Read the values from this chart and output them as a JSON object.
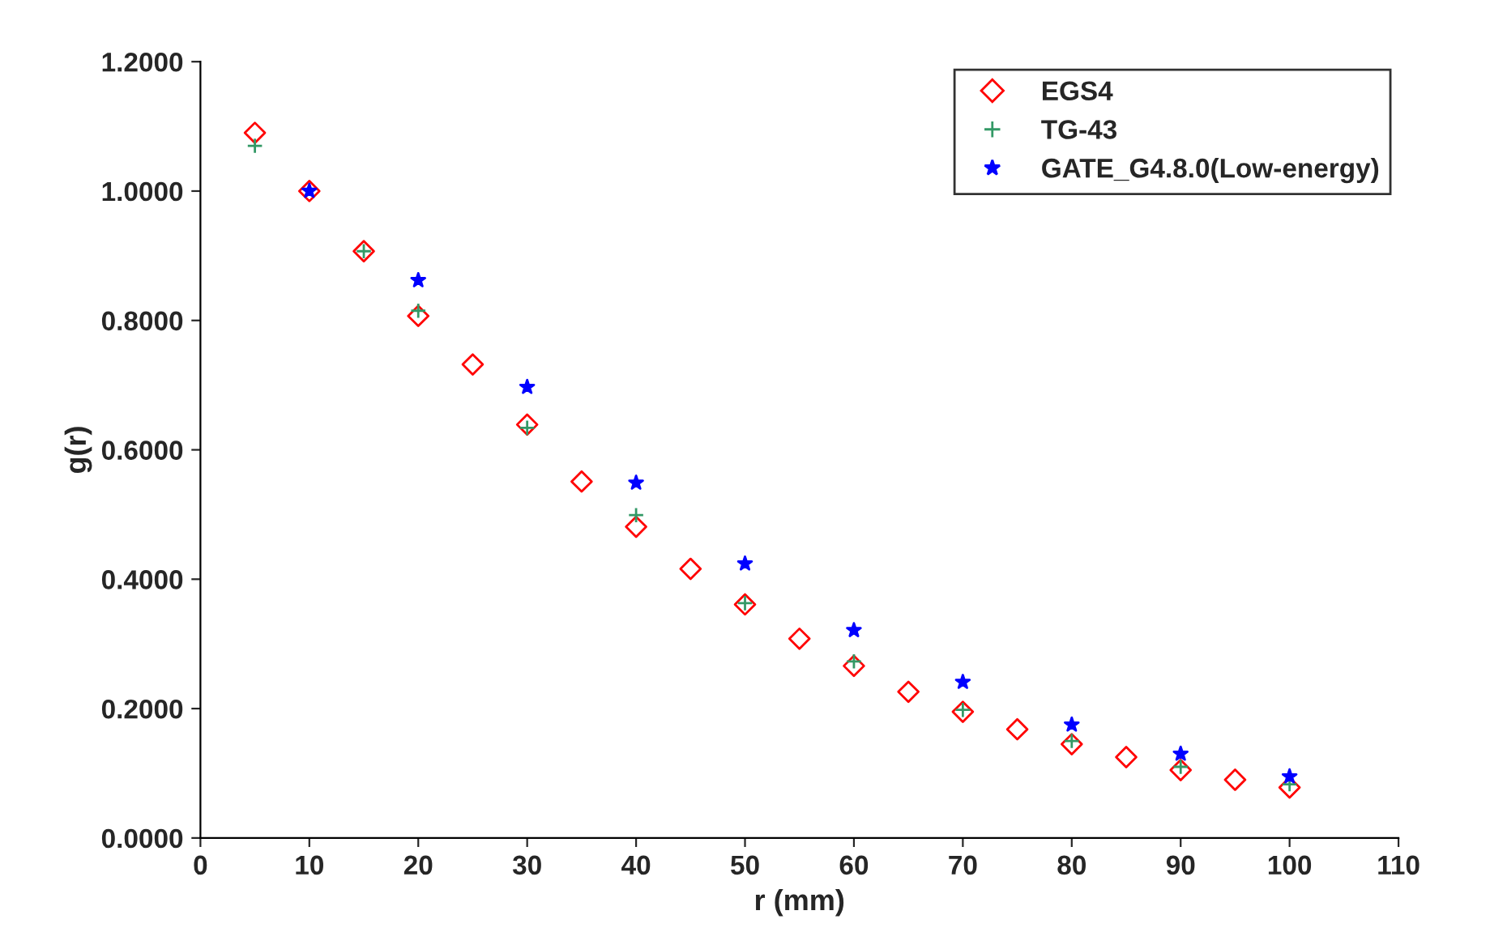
{
  "chart_data": {
    "type": "scatter",
    "xlabel": "r (mm)",
    "ylabel": "g(r)",
    "xlim": [
      0,
      110
    ],
    "xticks": [
      0,
      10,
      20,
      30,
      40,
      50,
      60,
      70,
      80,
      90,
      100,
      110
    ],
    "ylim": [
      0,
      1.2
    ],
    "yticks": [
      {
        "value": 0,
        "label": "0.0000"
      },
      {
        "value": 0.2,
        "label": "0.2000"
      },
      {
        "value": 0.4,
        "label": "0.4000"
      },
      {
        "value": 0.6,
        "label": "0.6000"
      },
      {
        "value": 0.8,
        "label": "0.8000"
      },
      {
        "value": 1.0,
        "label": "1.0000"
      },
      {
        "value": 1.2,
        "label": "1.2000"
      }
    ],
    "grid": false,
    "legend": "top right",
    "series": [
      {
        "name": "EGS4",
        "color": "#ff0000",
        "marker": "diamond",
        "x": [
          5,
          10,
          15,
          20,
          25,
          30,
          35,
          40,
          45,
          50,
          55,
          60,
          65,
          70,
          75,
          80,
          85,
          90,
          95,
          100
        ],
        "values": [
          1.09,
          1.0,
          0.907,
          0.807,
          0.732,
          0.639,
          0.551,
          0.481,
          0.416,
          0.361,
          0.308,
          0.266,
          0.226,
          0.195,
          0.168,
          0.145,
          0.125,
          0.105,
          0.09,
          0.078
        ]
      },
      {
        "name": "TG-43",
        "color": "#339966",
        "marker": "plus",
        "x": [
          5,
          10,
          15,
          20,
          30,
          40,
          50,
          60,
          70,
          80,
          90,
          100
        ],
        "values": [
          1.07,
          null,
          0.907,
          0.815,
          0.634,
          0.499,
          0.363,
          0.273,
          0.198,
          0.15,
          0.11,
          0.083
        ]
      },
      {
        "name": "GATE_G4.8.0(Low-energy)",
        "color": "#0000ff",
        "marker": "star",
        "x": [
          10,
          20,
          30,
          40,
          50,
          60,
          70,
          80,
          90,
          100
        ],
        "values": [
          1.0,
          0.862,
          0.697,
          0.549,
          0.424,
          0.321,
          0.241,
          0.175,
          0.13,
          0.095
        ]
      }
    ]
  }
}
